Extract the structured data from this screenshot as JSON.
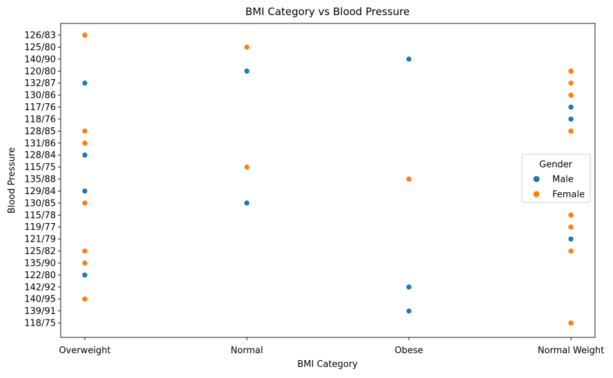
{
  "chart_data": {
    "type": "scatter",
    "title": "BMI Category vs Blood Pressure",
    "xlabel": "BMI Category",
    "ylabel": "Blood Pressure",
    "categories": [
      "Overweight",
      "Normal",
      "Obese",
      "Normal Weight"
    ],
    "y_categories": [
      "126/83",
      "125/80",
      "140/90",
      "120/80",
      "132/87",
      "130/86",
      "117/76",
      "118/76",
      "128/85",
      "131/86",
      "128/84",
      "115/75",
      "135/88",
      "129/84",
      "130/85",
      "115/78",
      "119/77",
      "121/79",
      "125/82",
      "135/90",
      "122/80",
      "142/92",
      "140/95",
      "139/91",
      "118/75"
    ],
    "legend": {
      "title": "Gender",
      "position": "center-right",
      "entries": [
        {
          "name": "Male",
          "color": "#1f77b4"
        },
        {
          "name": "Female",
          "color": "#ff7f0e"
        }
      ]
    },
    "grid": false,
    "series": [
      {
        "name": "Male",
        "color": "#1f77b4",
        "points": [
          {
            "x": "Overweight",
            "y": "132/87"
          },
          {
            "x": "Overweight",
            "y": "128/84"
          },
          {
            "x": "Overweight",
            "y": "129/84"
          },
          {
            "x": "Overweight",
            "y": "122/80"
          },
          {
            "x": "Normal",
            "y": "120/80"
          },
          {
            "x": "Normal",
            "y": "130/85"
          },
          {
            "x": "Obese",
            "y": "140/90"
          },
          {
            "x": "Obese",
            "y": "142/92"
          },
          {
            "x": "Obese",
            "y": "139/91"
          },
          {
            "x": "Normal Weight",
            "y": "117/76"
          },
          {
            "x": "Normal Weight",
            "y": "118/76"
          },
          {
            "x": "Normal Weight",
            "y": "121/79"
          }
        ]
      },
      {
        "name": "Female",
        "color": "#ff7f0e",
        "points": [
          {
            "x": "Overweight",
            "y": "126/83"
          },
          {
            "x": "Overweight",
            "y": "128/85"
          },
          {
            "x": "Overweight",
            "y": "131/86"
          },
          {
            "x": "Overweight",
            "y": "130/85"
          },
          {
            "x": "Overweight",
            "y": "125/82"
          },
          {
            "x": "Overweight",
            "y": "135/90"
          },
          {
            "x": "Overweight",
            "y": "140/95"
          },
          {
            "x": "Normal",
            "y": "125/80"
          },
          {
            "x": "Normal",
            "y": "115/75"
          },
          {
            "x": "Obese",
            "y": "135/88"
          },
          {
            "x": "Normal Weight",
            "y": "120/80"
          },
          {
            "x": "Normal Weight",
            "y": "132/87"
          },
          {
            "x": "Normal Weight",
            "y": "130/86"
          },
          {
            "x": "Normal Weight",
            "y": "128/85"
          },
          {
            "x": "Normal Weight",
            "y": "115/78"
          },
          {
            "x": "Normal Weight",
            "y": "119/77"
          },
          {
            "x": "Normal Weight",
            "y": "125/82"
          },
          {
            "x": "Normal Weight",
            "y": "118/75"
          }
        ]
      }
    ]
  }
}
